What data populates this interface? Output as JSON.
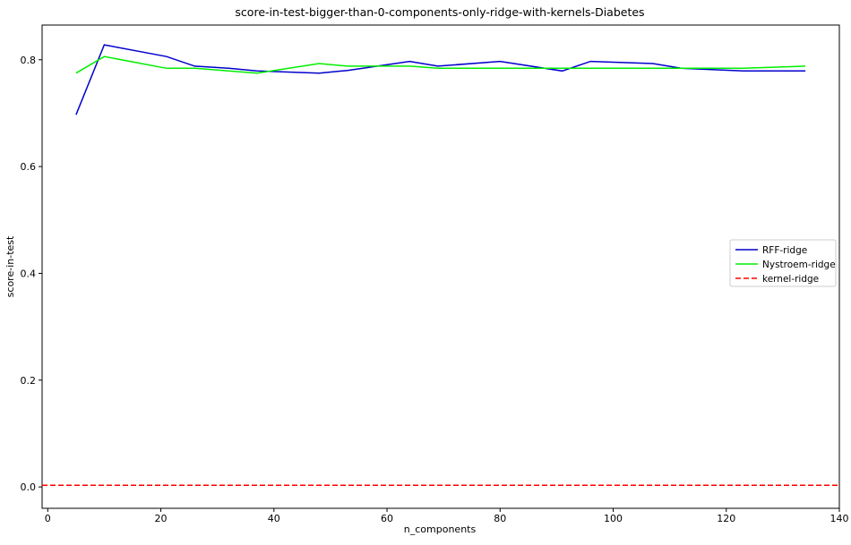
{
  "chart_data": {
    "type": "line",
    "title": "score-in-test-bigger-than-0-components-only-ridge-with-kernels-Diabetes",
    "xlabel": "n_components",
    "ylabel": "score-in-test",
    "xlim": [
      -1,
      140
    ],
    "ylim": [
      -0.04,
      0.865
    ],
    "xticks": [
      0,
      20,
      40,
      60,
      80,
      100,
      120,
      140
    ],
    "xtick_labels": [
      "0",
      "20",
      "40",
      "60",
      "80",
      "100",
      "120",
      "140"
    ],
    "yticks": [
      0.0,
      0.2,
      0.4,
      0.6,
      0.8
    ],
    "ytick_labels": [
      "0.0",
      "0.2",
      "0.4",
      "0.6",
      "0.8"
    ],
    "grid": false,
    "legend_position": "center-right",
    "series": [
      {
        "name": "RFF-ridge",
        "color": "#0000cc",
        "style": "solid",
        "x": [
          5,
          10,
          21,
          26,
          32,
          37,
          48,
          53,
          64,
          69,
          80,
          91,
          96,
          107,
          112,
          123,
          134
        ],
        "y": [
          0.697,
          0.828,
          0.806,
          0.788,
          0.784,
          0.779,
          0.775,
          0.78,
          0.797,
          0.788,
          0.797,
          0.779,
          0.797,
          0.793,
          0.784,
          0.779,
          0.779
        ]
      },
      {
        "name": "Nystroem-ridge",
        "color": "#00ee00",
        "style": "solid",
        "x": [
          5,
          10,
          21,
          26,
          32,
          37,
          48,
          53,
          64,
          69,
          80,
          91,
          96,
          107,
          112,
          123,
          134
        ],
        "y": [
          0.775,
          0.806,
          0.784,
          0.784,
          0.779,
          0.775,
          0.793,
          0.788,
          0.788,
          0.784,
          0.784,
          0.784,
          0.784,
          0.784,
          0.784,
          0.784,
          0.788
        ]
      },
      {
        "name": "kernel-ridge",
        "color": "#ff0000",
        "style": "dashed",
        "x": [
          -1,
          140
        ],
        "y": [
          0.003,
          0.003
        ]
      }
    ]
  }
}
